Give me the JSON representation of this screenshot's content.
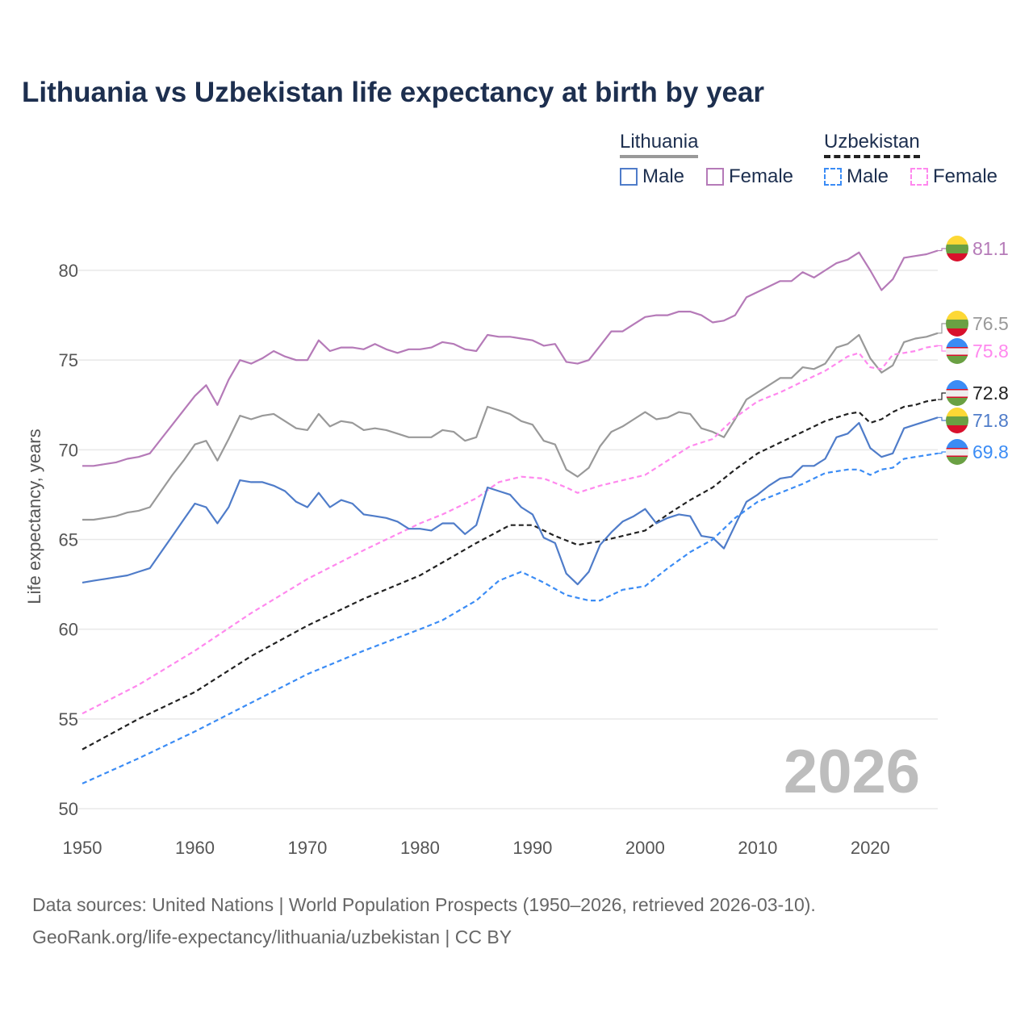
{
  "chart_data": {
    "type": "line",
    "title": "Lithuania vs Uzbekistan life expectancy at birth by year",
    "xlabel": "",
    "ylabel": "Life expectancy, years",
    "xlim": [
      1950,
      2026
    ],
    "ylim": [
      50,
      82
    ],
    "x_ticks": [
      "1950",
      "1960",
      "1970",
      "1980",
      "1990",
      "2000",
      "2010",
      "2020"
    ],
    "y_ticks": [
      "50",
      "55",
      "60",
      "65",
      "70",
      "75",
      "80"
    ],
    "grid": true,
    "legend_placement": "top-right",
    "legend": {
      "groups": [
        {
          "name": "Lithuania",
          "items": [
            "Male",
            "Female"
          ]
        },
        {
          "name": "Uzbekistan",
          "items": [
            "Male",
            "Female"
          ]
        }
      ]
    },
    "year_watermark": "2026",
    "series": [
      {
        "name": "Lithuania Female",
        "country": "Lithuania",
        "color": "#b57ab8",
        "dashed": false,
        "end_label": "81.1",
        "flag": "lithuania",
        "x": [
          1950,
          1951,
          1952,
          1953,
          1954,
          1955,
          1956,
          1957,
          1958,
          1959,
          1960,
          1961,
          1962,
          1963,
          1964,
          1965,
          1966,
          1967,
          1968,
          1969,
          1970,
          1971,
          1972,
          1973,
          1974,
          1975,
          1976,
          1977,
          1978,
          1979,
          1980,
          1981,
          1982,
          1983,
          1984,
          1985,
          1986,
          1987,
          1988,
          1989,
          1990,
          1991,
          1992,
          1993,
          1994,
          1995,
          1996,
          1997,
          1998,
          1999,
          2000,
          2001,
          2002,
          2003,
          2004,
          2005,
          2006,
          2007,
          2008,
          2009,
          2010,
          2011,
          2012,
          2013,
          2014,
          2015,
          2016,
          2017,
          2018,
          2019,
          2020,
          2021,
          2022,
          2023,
          2024,
          2025,
          2026
        ],
        "y": [
          69.1,
          69.1,
          69.2,
          69.3,
          69.5,
          69.6,
          69.8,
          70.6,
          71.4,
          72.2,
          73.0,
          73.6,
          72.5,
          73.9,
          75.0,
          74.8,
          75.1,
          75.5,
          75.2,
          75.0,
          75.0,
          76.1,
          75.5,
          75.7,
          75.7,
          75.6,
          75.9,
          75.6,
          75.4,
          75.6,
          75.6,
          75.7,
          76.0,
          75.9,
          75.6,
          75.5,
          76.4,
          76.3,
          76.3,
          76.2,
          76.1,
          75.8,
          75.9,
          74.9,
          74.8,
          75.0,
          75.8,
          76.6,
          76.6,
          77.0,
          77.4,
          77.5,
          77.5,
          77.7,
          77.7,
          77.5,
          77.1,
          77.2,
          77.5,
          78.5,
          78.8,
          79.1,
          79.4,
          79.4,
          79.9,
          79.6,
          80.0,
          80.4,
          80.6,
          81.0,
          80.0,
          78.9,
          79.5,
          80.7,
          80.8,
          80.9,
          81.1
        ]
      },
      {
        "name": "Lithuania Total",
        "country": "Lithuania",
        "color": "#999999",
        "dashed": false,
        "end_label": "76.5",
        "flag": "lithuania",
        "x": [
          1950,
          1951,
          1952,
          1953,
          1954,
          1955,
          1956,
          1957,
          1958,
          1959,
          1960,
          1961,
          1962,
          1963,
          1964,
          1965,
          1966,
          1967,
          1968,
          1969,
          1970,
          1971,
          1972,
          1973,
          1974,
          1975,
          1976,
          1977,
          1978,
          1979,
          1980,
          1981,
          1982,
          1983,
          1984,
          1985,
          1986,
          1987,
          1988,
          1989,
          1990,
          1991,
          1992,
          1993,
          1994,
          1995,
          1996,
          1997,
          1998,
          1999,
          2000,
          2001,
          2002,
          2003,
          2004,
          2005,
          2006,
          2007,
          2008,
          2009,
          2010,
          2011,
          2012,
          2013,
          2014,
          2015,
          2016,
          2017,
          2018,
          2019,
          2020,
          2021,
          2022,
          2023,
          2024,
          2025,
          2026
        ],
        "y": [
          66.1,
          66.1,
          66.2,
          66.3,
          66.5,
          66.6,
          66.8,
          67.7,
          68.6,
          69.4,
          70.3,
          70.5,
          69.4,
          70.6,
          71.9,
          71.7,
          71.9,
          72.0,
          71.6,
          71.2,
          71.1,
          72.0,
          71.3,
          71.6,
          71.5,
          71.1,
          71.2,
          71.1,
          70.9,
          70.7,
          70.7,
          70.7,
          71.1,
          71.0,
          70.5,
          70.7,
          72.4,
          72.2,
          72.0,
          71.6,
          71.4,
          70.5,
          70.3,
          68.9,
          68.5,
          69.0,
          70.2,
          71.0,
          71.3,
          71.7,
          72.1,
          71.7,
          71.8,
          72.1,
          72.0,
          71.2,
          71.0,
          70.7,
          71.7,
          72.8,
          73.2,
          73.6,
          74.0,
          74.0,
          74.6,
          74.5,
          74.8,
          75.7,
          75.9,
          76.4,
          75.1,
          74.3,
          74.7,
          76.0,
          76.2,
          76.3,
          76.5
        ]
      },
      {
        "name": "Uzbekistan Female",
        "country": "Uzbekistan",
        "color": "#ff88ee",
        "dashed": true,
        "end_label": "75.8",
        "flag": "uzbekistan",
        "x": [
          1950,
          1955,
          1960,
          1965,
          1970,
          1975,
          1980,
          1982,
          1985,
          1987,
          1989,
          1991,
          1993,
          1994,
          1996,
          1998,
          2000,
          2002,
          2004,
          2006,
          2008,
          2010,
          2012,
          2014,
          2016,
          2018,
          2019,
          2020,
          2021,
          2022,
          2023,
          2024,
          2025,
          2026
        ],
        "y": [
          55.3,
          56.9,
          58.8,
          60.9,
          62.8,
          64.4,
          65.9,
          66.4,
          67.3,
          68.2,
          68.5,
          68.4,
          67.9,
          67.6,
          68.0,
          68.3,
          68.6,
          69.4,
          70.2,
          70.6,
          71.8,
          72.7,
          73.2,
          73.8,
          74.4,
          75.2,
          75.4,
          74.6,
          74.5,
          75.3,
          75.4,
          75.5,
          75.7,
          75.8
        ]
      },
      {
        "name": "Uzbekistan Total",
        "country": "Uzbekistan",
        "color": "#222222",
        "dashed": true,
        "end_label": "72.8",
        "flag": "uzbekistan",
        "x": [
          1950,
          1955,
          1960,
          1965,
          1970,
          1975,
          1980,
          1985,
          1988,
          1990,
          1992,
          1994,
          1996,
          1998,
          2000,
          2002,
          2004,
          2006,
          2008,
          2010,
          2012,
          2014,
          2016,
          2018,
          2019,
          2020,
          2021,
          2022,
          2023,
          2024,
          2025,
          2026
        ],
        "y": [
          53.3,
          55.0,
          56.5,
          58.5,
          60.2,
          61.7,
          63.0,
          64.8,
          65.8,
          65.8,
          65.2,
          64.7,
          64.9,
          65.2,
          65.5,
          66.4,
          67.2,
          67.9,
          68.9,
          69.8,
          70.4,
          71.0,
          71.6,
          72.0,
          72.1,
          71.5,
          71.7,
          72.1,
          72.4,
          72.5,
          72.7,
          72.8
        ]
      },
      {
        "name": "Lithuania Male",
        "country": "Lithuania",
        "color": "#4f7cc9",
        "dashed": false,
        "end_label": "71.8",
        "flag": "lithuania",
        "x": [
          1950,
          1951,
          1952,
          1953,
          1954,
          1955,
          1956,
          1957,
          1958,
          1959,
          1960,
          1961,
          1962,
          1963,
          1964,
          1965,
          1966,
          1967,
          1968,
          1969,
          1970,
          1971,
          1972,
          1973,
          1974,
          1975,
          1976,
          1977,
          1978,
          1979,
          1980,
          1981,
          1982,
          1983,
          1984,
          1985,
          1986,
          1987,
          1988,
          1989,
          1990,
          1991,
          1992,
          1993,
          1994,
          1995,
          1996,
          1997,
          1998,
          1999,
          2000,
          2001,
          2002,
          2003,
          2004,
          2005,
          2006,
          2007,
          2008,
          2009,
          2010,
          2011,
          2012,
          2013,
          2014,
          2015,
          2016,
          2017,
          2018,
          2019,
          2020,
          2021,
          2022,
          2023,
          2024,
          2025,
          2026
        ],
        "y": [
          62.6,
          62.7,
          62.8,
          62.9,
          63.0,
          63.2,
          63.4,
          64.3,
          65.2,
          66.1,
          67.0,
          66.8,
          65.9,
          66.8,
          68.3,
          68.2,
          68.2,
          68.0,
          67.7,
          67.1,
          66.8,
          67.6,
          66.8,
          67.2,
          67.0,
          66.4,
          66.3,
          66.2,
          66.0,
          65.6,
          65.6,
          65.5,
          65.9,
          65.9,
          65.3,
          65.8,
          67.9,
          67.7,
          67.5,
          66.8,
          66.4,
          65.1,
          64.8,
          63.1,
          62.5,
          63.2,
          64.7,
          65.4,
          66.0,
          66.3,
          66.7,
          65.9,
          66.2,
          66.4,
          66.3,
          65.2,
          65.1,
          64.5,
          65.8,
          67.1,
          67.5,
          68.0,
          68.4,
          68.5,
          69.1,
          69.1,
          69.5,
          70.7,
          70.9,
          71.5,
          70.1,
          69.6,
          69.8,
          71.2,
          71.4,
          71.6,
          71.8
        ]
      },
      {
        "name": "Uzbekistan Male",
        "country": "Uzbekistan",
        "color": "#3b8cf5",
        "dashed": true,
        "end_label": "69.8",
        "flag": "uzbekistan",
        "x": [
          1950,
          1955,
          1960,
          1965,
          1970,
          1975,
          1980,
          1982,
          1985,
          1987,
          1989,
          1991,
          1993,
          1995,
          1996,
          1998,
          2000,
          2002,
          2004,
          2006,
          2008,
          2010,
          2012,
          2014,
          2016,
          2018,
          2019,
          2020,
          2021,
          2022,
          2023,
          2024,
          2025,
          2026
        ],
        "y": [
          51.4,
          52.8,
          54.3,
          55.9,
          57.5,
          58.8,
          60.0,
          60.5,
          61.6,
          62.7,
          63.2,
          62.6,
          61.9,
          61.6,
          61.6,
          62.2,
          62.4,
          63.4,
          64.3,
          65.0,
          66.2,
          67.1,
          67.6,
          68.1,
          68.7,
          68.9,
          68.9,
          68.6,
          68.9,
          69.0,
          69.5,
          69.6,
          69.7,
          69.8
        ]
      }
    ]
  },
  "source": {
    "line1": "Data sources: United Nations | World Population Prospects (1950–2026, retrieved 2026-03-10).",
    "line2": "GeoRank.org/life-expectancy/lithuania/uzbekistan | CC BY"
  }
}
